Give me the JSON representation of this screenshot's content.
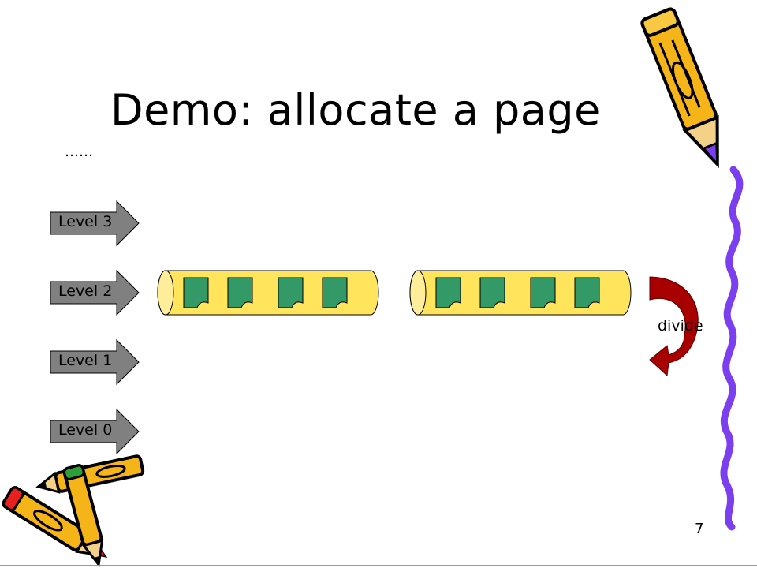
{
  "slide": {
    "title": "Demo: allocate a page",
    "ellipsis": "……",
    "page_number": "7"
  },
  "levels": [
    {
      "label": "Level 3"
    },
    {
      "label": "Level 2"
    },
    {
      "label": "Level 1"
    },
    {
      "label": "Level 0"
    }
  ],
  "blocks": [
    {
      "level": "Level 2",
      "pages": 4
    },
    {
      "level": "Level 2",
      "pages": 4
    }
  ],
  "divide_arrow": {
    "label": "divide"
  },
  "colors": {
    "level_arrow_fill": "#808080",
    "block_fill": "#FFE45C",
    "page_fill": "#339966",
    "divide_arrow_fill": "#A80000",
    "pencil_body": "#F5B418",
    "squiggle": "#7B3FF0"
  },
  "icons": [
    "pencil-icon",
    "pencil-icon",
    "pencil-icon",
    "pencil-icon",
    "squiggle-icon",
    "curved-arrow-icon"
  ]
}
